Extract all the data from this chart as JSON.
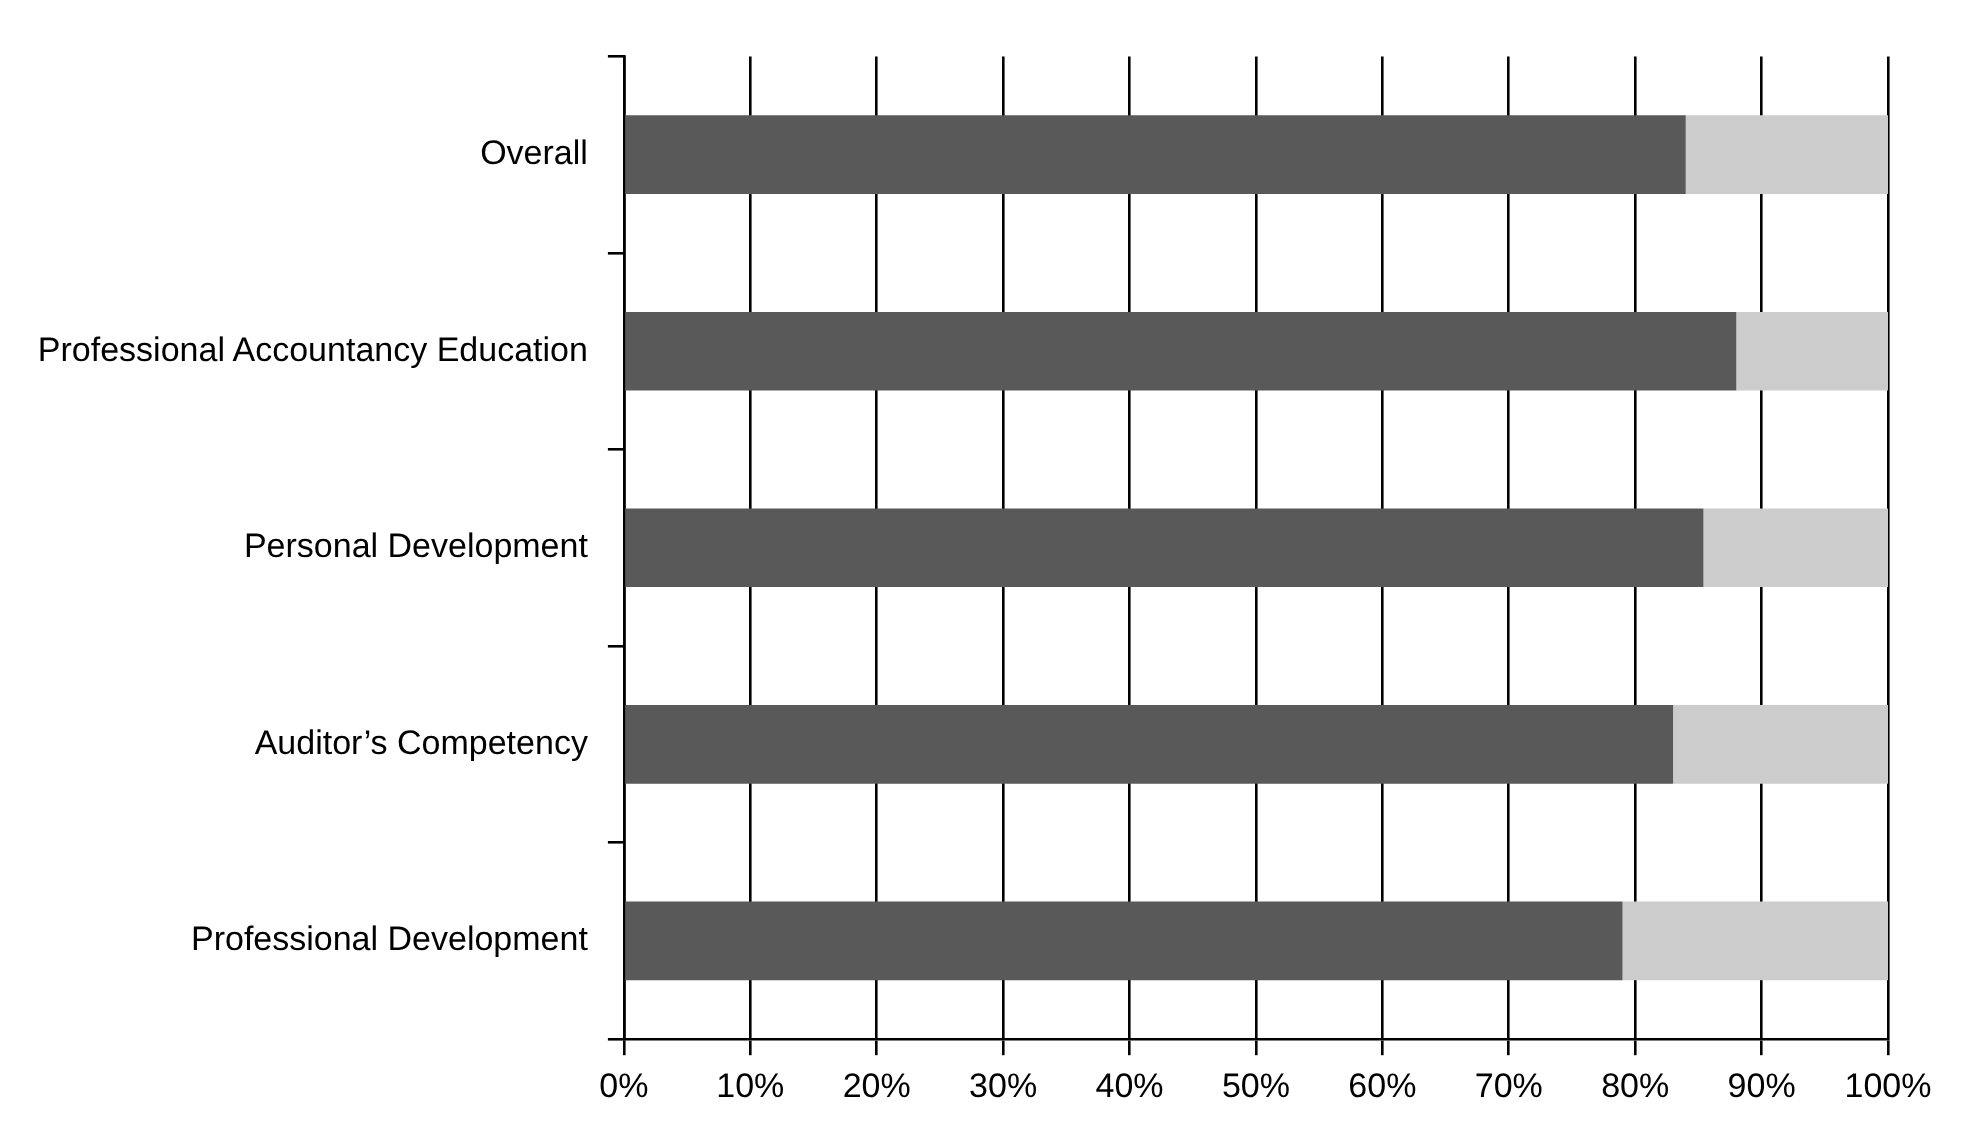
{
  "chart_data": {
    "type": "bar",
    "orientation": "horizontal",
    "stacked": true,
    "categories": [
      "Overall",
      "Professional Accountancy Education",
      "Personal Development",
      "Auditor’s Competency",
      "Professional Development"
    ],
    "series": [
      {
        "color": "#595959",
        "values": [
          84,
          88,
          85.4,
          83,
          79
        ]
      },
      {
        "color": "#cccccc",
        "values": [
          16,
          12,
          14.6,
          17,
          21
        ]
      }
    ],
    "xlim": [
      0,
      100
    ],
    "xticks": [
      {
        "value": 0,
        "label": "0%"
      },
      {
        "value": 10,
        "label": "10%"
      },
      {
        "value": 20,
        "label": "20%"
      },
      {
        "value": 30,
        "label": "30%"
      },
      {
        "value": 40,
        "label": "40%"
      },
      {
        "value": 50,
        "label": "50%"
      },
      {
        "value": 60,
        "label": "60%"
      },
      {
        "value": 70,
        "label": "70%"
      },
      {
        "value": 80,
        "label": "80%"
      },
      {
        "value": 90,
        "label": "90%"
      },
      {
        "value": 100,
        "label": "100%"
      }
    ],
    "grid": "x"
  }
}
